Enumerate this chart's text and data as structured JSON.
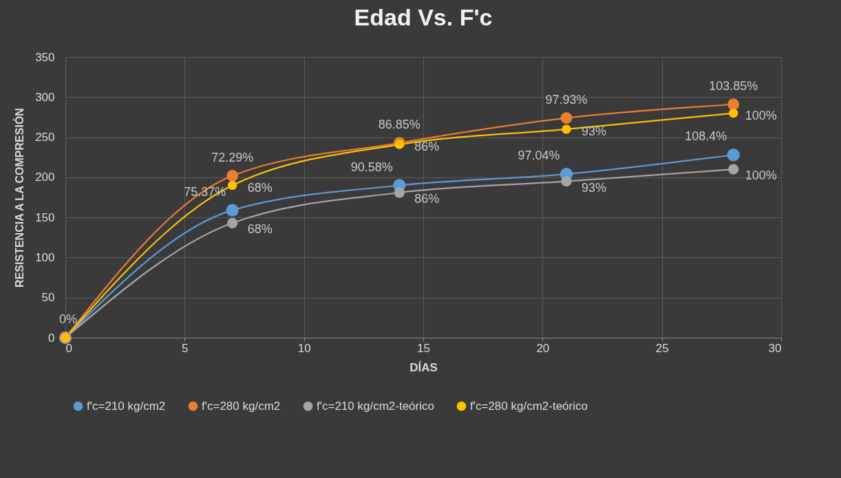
{
  "chart_data": {
    "type": "line",
    "title": "Edad Vs. F'c",
    "xlabel": "DÍAS",
    "ylabel": "RESISTENCIA A LA COMPRESIÓN",
    "x": [
      0,
      7,
      14,
      21,
      28
    ],
    "series": [
      {
        "name": "f'c=210 kg/cm2",
        "color": "#5b9bd5",
        "values": [
          0,
          159,
          190,
          204,
          228
        ]
      },
      {
        "name": "f'c=280 kg/cm2",
        "color": "#ed7d31",
        "values": [
          0,
          202,
          243,
          274,
          291
        ]
      },
      {
        "name": "f'c=210 kg/cm2-teórico",
        "color": "#a5a5a5",
        "values": [
          0,
          143,
          181,
          195,
          210
        ]
      },
      {
        "name": "f'c=280 kg/cm2-teórico",
        "color": "#ffc000",
        "values": [
          0,
          190,
          241,
          260,
          280
        ]
      }
    ],
    "annotations": [
      {
        "text": "0%",
        "x": 0,
        "y": 0
      },
      {
        "text": "75.37%",
        "x": 7,
        "y": 159
      },
      {
        "text": "90.58%",
        "x": 14,
        "y": 190
      },
      {
        "text": "97.04%",
        "x": 21,
        "y": 204
      },
      {
        "text": "108.4%",
        "x": 28,
        "y": 228
      },
      {
        "text": "72.29%",
        "x": 7,
        "y": 202
      },
      {
        "text": "86.85%",
        "x": 14,
        "y": 243
      },
      {
        "text": "97.93%",
        "x": 21,
        "y": 274
      },
      {
        "text": "103.85%",
        "x": 28,
        "y": 291
      },
      {
        "text": "68%",
        "x": 7,
        "y": 143
      },
      {
        "text": "86%",
        "x": 14,
        "y": 181
      },
      {
        "text": "93%",
        "x": 21,
        "y": 195
      },
      {
        "text": "100%",
        "x": 28,
        "y": 210
      },
      {
        "text": "68%",
        "x": 7,
        "y": 190
      },
      {
        "text": "86%",
        "x": 14,
        "y": 241
      },
      {
        "text": "93%",
        "x": 21,
        "y": 260
      },
      {
        "text": "100%",
        "x": 28,
        "y": 280
      }
    ],
    "xlim": [
      0,
      30
    ],
    "xticks": [
      0,
      5,
      10,
      15,
      20,
      25,
      30
    ],
    "ylim": [
      0,
      350
    ],
    "yticks": [
      0,
      50,
      100,
      150,
      200,
      250,
      300,
      350
    ],
    "grid": true,
    "legend": "bottom",
    "marker": "circle",
    "line_style": "solid"
  }
}
